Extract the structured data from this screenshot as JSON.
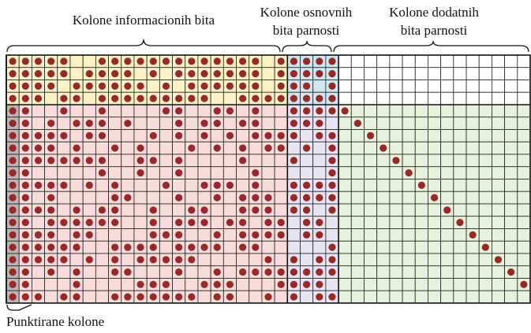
{
  "labels": {
    "info": "Kolone informacionih bita",
    "basic": [
      "Kolone osnovnih",
      "bita parnosti"
    ],
    "extra": [
      "Kolone dodatnih",
      "bita parnosti"
    ],
    "dotted": "Punktirane kolone"
  }
}
